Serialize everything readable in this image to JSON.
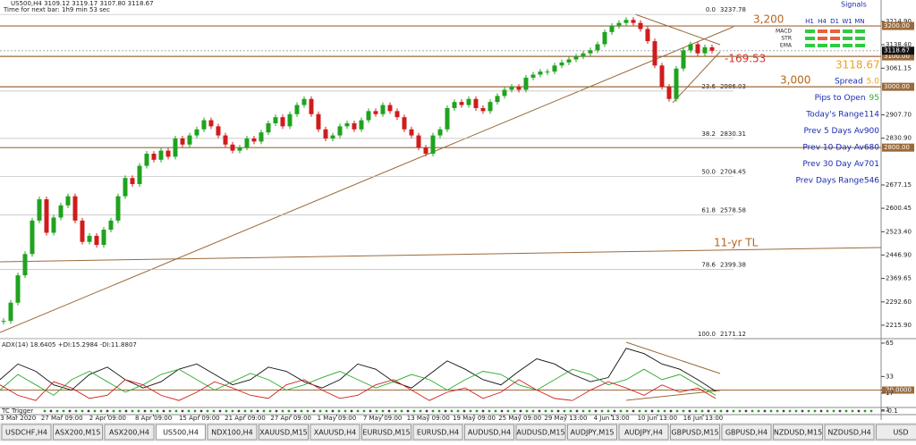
{
  "header": {
    "symbol_line": "US500,H4  3109.12 3119.17 3107.80 3118.67",
    "timer": "Time for next bar: 1h9 min 53 sec"
  },
  "chart_data": {
    "type": "candlestick",
    "up_color": "#1fa31f",
    "down_color": "#d01c1c",
    "close": [
      2230,
      2290,
      2380,
      2450,
      2560,
      2630,
      2520,
      2570,
      2610,
      2640,
      2560,
      2490,
      2510,
      2480,
      2530,
      2560,
      2640,
      2700,
      2680,
      2740,
      2780,
      2760,
      2790,
      2770,
      2830,
      2810,
      2840,
      2860,
      2890,
      2870,
      2840,
      2810,
      2790,
      2800,
      2830,
      2820,
      2850,
      2880,
      2900,
      2870,
      2910,
      2940,
      2960,
      2910,
      2860,
      2830,
      2840,
      2870,
      2880,
      2860,
      2890,
      2920,
      2910,
      2940,
      2920,
      2900,
      2860,
      2840,
      2800,
      2780,
      2840,
      2860,
      2930,
      2950,
      2940,
      2960,
      2930,
      2920,
      2950,
      2970,
      2990,
      3000,
      2990,
      3030,
      3040,
      3050,
      3050,
      3070,
      3080,
      3090,
      3100,
      3110,
      3120,
      3140,
      3180,
      3200,
      3210,
      3220,
      3210,
      3190,
      3150,
      3070,
      3000,
      2960,
      3060,
      3120,
      3140,
      3110,
      3130,
      3118.67
    ],
    "ylim": [
      2174.6,
      3285.4
    ],
    "yticks": [
      {
        "value": 3214.9,
        "label": "3214.90"
      },
      {
        "value": 3138.4,
        "label": "3138.40"
      },
      {
        "value": 3061.15,
        "label": "3061.15"
      },
      {
        "value": 2907.7,
        "label": "2907.70"
      },
      {
        "value": 2830.9,
        "label": "2830.90"
      },
      {
        "value": 2677.15,
        "label": "2677.15"
      },
      {
        "value": 2600.45,
        "label": "2600.45"
      },
      {
        "value": 2523.4,
        "label": "2523.40"
      },
      {
        "value": 2446.9,
        "label": "2446.90"
      },
      {
        "value": 2369.65,
        "label": "2369.65"
      },
      {
        "value": 2292.6,
        "label": "2292.60"
      },
      {
        "value": 2215.9,
        "label": "2215.90"
      }
    ],
    "levels": [
      {
        "value": 3200,
        "label": "3200.00",
        "note": "3,200"
      },
      {
        "value": 3100,
        "label": "3100.00"
      },
      {
        "value": 3000,
        "label": "3000.00",
        "note": "3,000"
      },
      {
        "value": 2800,
        "label": "2800.00"
      }
    ],
    "current": {
      "value": 3118.67,
      "label": "3118.67"
    },
    "fib": [
      {
        "ratio": "0.0",
        "value": 3237.78
      },
      {
        "ratio": "23.6",
        "value": 2986.03
      },
      {
        "ratio": "38.2",
        "value": 2830.31
      },
      {
        "ratio": "50.0",
        "value": 2704.45
      },
      {
        "ratio": "61.8",
        "value": 2578.58
      },
      {
        "ratio": "78.6",
        "value": 2399.38
      },
      {
        "ratio": "100.0",
        "value": 2171.12
      }
    ],
    "annotations": {
      "trendline": "11-yr TL",
      "distance": "-169.53",
      "price_big": "3118.67"
    },
    "xlabels": [
      "23 Mar 2020",
      "27 Mar 09:00",
      "2 Apr 09:00",
      "8 Apr 09:00",
      "15 Apr 09:00",
      "21 Apr 09:00",
      "27 Apr 09:00",
      "1 May 09:00",
      "7 May 09:00",
      "13 May 09:00",
      "19 May 09:00",
      "25 May 09:00",
      "29 May 13:00",
      "4 Jun 13:00",
      "10 Jun 13:00",
      "16 Jun 13:00"
    ]
  },
  "adx": {
    "title": "ADX(14) 18.6405 +DI:15.2984 -DI:11.8807",
    "ylim": [
      -0.1,
      65
    ],
    "yticks": [
      65,
      33,
      {
        "value": 20,
        "label": "20.0000"
      },
      17,
      1,
      -0.1
    ],
    "series": [
      {
        "color": "#111111",
        "values": [
          30,
          45,
          38,
          25,
          20,
          35,
          42,
          30,
          22,
          28,
          40,
          45,
          35,
          25,
          30,
          42,
          38,
          28,
          22,
          30,
          45,
          40,
          28,
          22,
          35,
          48,
          40,
          30,
          25,
          38,
          50,
          45,
          35,
          28,
          32,
          60,
          55,
          45,
          40,
          30,
          19
        ]
      },
      {
        "color": "#2eaa2e",
        "values": [
          20,
          35,
          25,
          15,
          30,
          38,
          28,
          18,
          25,
          35,
          40,
          30,
          20,
          28,
          36,
          30,
          20,
          25,
          32,
          38,
          30,
          22,
          28,
          35,
          30,
          20,
          30,
          38,
          35,
          25,
          20,
          30,
          40,
          35,
          25,
          30,
          40,
          30,
          35,
          25,
          15
        ]
      },
      {
        "color": "#d02020",
        "values": [
          25,
          15,
          10,
          28,
          22,
          12,
          15,
          30,
          25,
          15,
          10,
          18,
          28,
          22,
          15,
          12,
          25,
          30,
          20,
          12,
          15,
          25,
          30,
          20,
          10,
          18,
          22,
          12,
          18,
          30,
          20,
          12,
          10,
          20,
          28,
          22,
          15,
          25,
          18,
          22,
          12
        ]
      }
    ]
  },
  "trigger": {
    "title": "TC Trigger"
  },
  "signals": {
    "title": "Signals",
    "columns": [
      "H1",
      "H4",
      "D1",
      "W1",
      "MN"
    ],
    "rows": [
      {
        "label": "MACD",
        "colors": [
          "#2ecc40",
          "#e8603c",
          "#e8603c",
          "#2ecc40",
          "#2ecc40"
        ]
      },
      {
        "label": "STR",
        "colors": [
          "#2ecc40",
          "#e8603c",
          "#e8603c",
          "#2ecc40",
          "#2ecc40"
        ]
      },
      {
        "label": "EMA",
        "colors": [
          "#2ecc40",
          "#2ecc40",
          "#2ecc40",
          "#2ecc40",
          "#2ecc40"
        ]
      }
    ]
  },
  "stats": [
    {
      "label": "Spread",
      "value": "5.0"
    },
    {
      "label": "Pips to Open",
      "value": 95
    },
    {
      "label": "Today's Range",
      "value": 114
    },
    {
      "label": "Prev 5 Days Av",
      "value": 900
    },
    {
      "label": "Prev 10 Day Av",
      "value": 680
    },
    {
      "label": "Prev 30 Day Av",
      "value": 701
    },
    {
      "label": "Prev Days Range",
      "value": 546
    }
  ],
  "tabs": {
    "active": 3,
    "items": [
      "USDCHF,H4",
      "ASX200,M15",
      "ASX200,H4",
      "US500,H4",
      "NDX100,H4",
      "XAUUSD,M15",
      "XAUUSD,H4",
      "EURUSD,M15",
      "EURUSD,H4",
      "AUDUSD,H4",
      "AUDUSD,M15",
      "AUDJPY,M15",
      "AUDJPY,H4",
      "GBPUSD,M15",
      "GBPUSD,H4",
      "NZDUSD,M15",
      "NZDUSD,H4",
      "USD"
    ]
  }
}
